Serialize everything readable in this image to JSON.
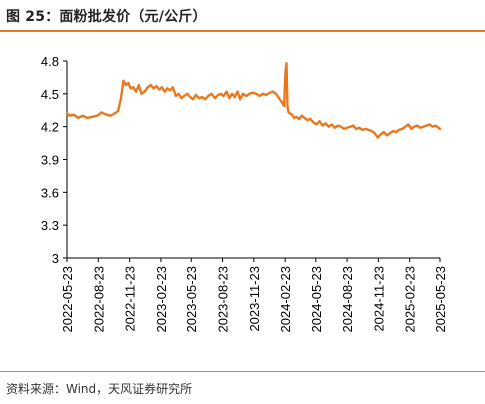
{
  "header": {
    "title": "图 25：面粉批发价（元/公斤）"
  },
  "footer": {
    "source": "资料来源：Wind，天风证券研究所"
  },
  "colors": {
    "accent": "#e37b24",
    "line": "#e8781e"
  },
  "chart_data": {
    "type": "line",
    "title": "面粉批发价（元/公斤）",
    "xlabel": "",
    "ylabel": "",
    "ylim": [
      3,
      4.8
    ],
    "yticks": [
      3,
      3.3,
      3.6,
      3.9,
      4.2,
      4.5,
      4.8
    ],
    "ytick_labels": [
      "3",
      "3.3",
      "3.6",
      "3.9",
      "4.2",
      "4.5",
      "4.8"
    ],
    "xlim": [
      "2022-05-23",
      "2025-05-23"
    ],
    "xticks": [
      "2022-05-23",
      "2022-08-23",
      "2022-11-23",
      "2023-02-23",
      "2023-05-23",
      "2023-08-23",
      "2023-11-23",
      "2024-02-23",
      "2024-05-23",
      "2024-08-23",
      "2024-11-23",
      "2025-02-23",
      "2025-05-23"
    ],
    "grid": false,
    "series": [
      {
        "x": [
          "2022-05-23",
          "2022-06-01",
          "2022-06-12",
          "2022-06-25",
          "2022-07-08",
          "2022-07-22",
          "2022-08-05",
          "2022-08-20",
          "2022-09-01",
          "2022-09-15",
          "2022-09-28",
          "2022-10-10",
          "2022-10-20",
          "2022-10-28",
          "2022-11-05",
          "2022-11-12",
          "2022-11-19",
          "2022-11-26",
          "2022-12-04",
          "2022-12-12",
          "2022-12-20",
          "2022-12-28",
          "2023-01-06",
          "2023-01-15",
          "2023-01-24",
          "2023-02-02",
          "2023-02-10",
          "2023-02-18",
          "2023-02-26",
          "2023-03-06",
          "2023-03-14",
          "2023-03-22",
          "2023-03-30",
          "2023-04-08",
          "2023-04-16",
          "2023-04-24",
          "2023-05-02",
          "2023-05-12",
          "2023-05-20",
          "2023-05-28",
          "2023-06-06",
          "2023-06-15",
          "2023-06-24",
          "2023-07-03",
          "2023-07-12",
          "2023-07-22",
          "2023-08-01",
          "2023-08-10",
          "2023-08-18",
          "2023-08-26",
          "2023-09-04",
          "2023-09-12",
          "2023-09-20",
          "2023-09-28",
          "2023-10-06",
          "2023-10-14",
          "2023-10-22",
          "2023-11-01",
          "2023-11-10",
          "2023-11-20",
          "2023-11-30",
          "2023-12-10",
          "2023-12-20",
          "2023-12-30",
          "2024-01-09",
          "2024-01-18",
          "2024-01-27",
          "2024-02-05",
          "2024-02-14",
          "2024-02-20",
          "2024-02-24",
          "2024-02-27",
          "2024-03-01",
          "2024-03-04",
          "2024-03-08",
          "2024-03-14",
          "2024-03-20",
          "2024-03-27",
          "2024-04-04",
          "2024-04-12",
          "2024-04-20",
          "2024-04-28",
          "2024-05-07",
          "2024-05-16",
          "2024-05-25",
          "2024-06-03",
          "2024-06-12",
          "2024-06-21",
          "2024-06-30",
          "2024-07-09",
          "2024-07-18",
          "2024-07-27",
          "2024-08-05",
          "2024-08-14",
          "2024-08-23",
          "2024-09-01",
          "2024-09-10",
          "2024-09-19",
          "2024-09-28",
          "2024-10-07",
          "2024-10-16",
          "2024-10-25",
          "2024-11-03",
          "2024-11-12",
          "2024-11-21",
          "2024-11-30",
          "2024-12-09",
          "2024-12-18",
          "2024-12-27",
          "2025-01-05",
          "2025-01-14",
          "2025-01-23",
          "2025-02-01",
          "2025-02-10",
          "2025-02-19",
          "2025-02-28",
          "2025-03-08",
          "2025-03-17",
          "2025-03-26",
          "2025-04-04",
          "2025-04-13",
          "2025-04-22",
          "2025-05-01",
          "2025-05-10",
          "2025-05-23"
        ],
        "values": [
          4.32,
          4.3,
          4.31,
          4.28,
          4.3,
          4.28,
          4.29,
          4.3,
          4.33,
          4.31,
          4.3,
          4.32,
          4.34,
          4.45,
          4.62,
          4.58,
          4.6,
          4.55,
          4.56,
          4.52,
          4.58,
          4.5,
          4.52,
          4.56,
          4.58,
          4.55,
          4.57,
          4.54,
          4.56,
          4.52,
          4.55,
          4.53,
          4.56,
          4.48,
          4.5,
          4.46,
          4.48,
          4.5,
          4.47,
          4.45,
          4.49,
          4.46,
          4.47,
          4.45,
          4.48,
          4.5,
          4.46,
          4.49,
          4.5,
          4.48,
          4.52,
          4.46,
          4.5,
          4.47,
          4.52,
          4.45,
          4.5,
          4.48,
          4.5,
          4.51,
          4.5,
          4.48,
          4.5,
          4.49,
          4.51,
          4.52,
          4.5,
          4.46,
          4.42,
          4.39,
          4.7,
          4.78,
          4.38,
          4.33,
          4.32,
          4.31,
          4.28,
          4.29,
          4.27,
          4.3,
          4.28,
          4.26,
          4.27,
          4.24,
          4.22,
          4.25,
          4.21,
          4.23,
          4.2,
          4.22,
          4.19,
          4.21,
          4.2,
          4.18,
          4.19,
          4.2,
          4.21,
          4.18,
          4.19,
          4.17,
          4.18,
          4.17,
          4.16,
          4.14,
          4.1,
          4.13,
          4.15,
          4.12,
          4.14,
          4.16,
          4.15,
          4.17,
          4.18,
          4.2,
          4.22,
          4.18,
          4.2,
          4.21,
          4.19,
          4.2,
          4.21,
          4.22,
          4.2,
          4.21,
          4.18
        ]
      }
    ]
  }
}
